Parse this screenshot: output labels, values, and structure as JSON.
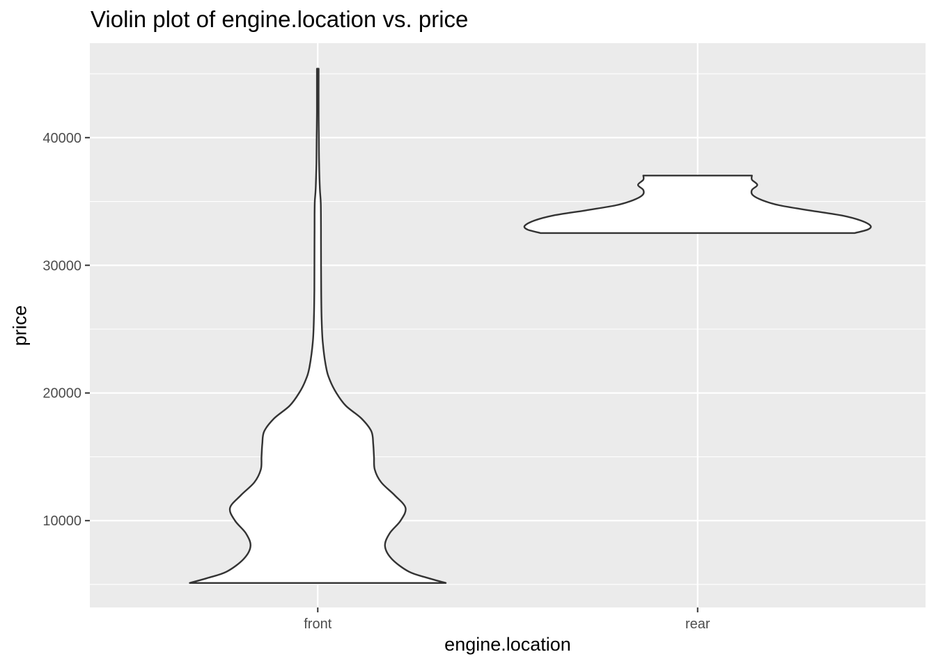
{
  "chart_data": {
    "type": "violin",
    "title": "Violin plot of engine.location vs. price",
    "xlabel": "engine.location",
    "ylabel": "price",
    "categories": [
      "front",
      "rear"
    ],
    "ylim": [
      3200,
      47400
    ],
    "yticks": [
      10000,
      20000,
      30000,
      40000
    ],
    "ytick_labels": [
      "10000",
      "20000",
      "30000",
      "40000"
    ],
    "grid": true,
    "background": "#ebebeb",
    "fill": "#ffffff",
    "outline": "#333333",
    "violins": [
      {
        "category": "front",
        "min": 5118,
        "max": 45400,
        "profile": [
          [
            5118,
            0.337
          ],
          [
            5500,
            0.291
          ],
          [
            6000,
            0.24
          ],
          [
            7000,
            0.195
          ],
          [
            8000,
            0.177
          ],
          [
            9000,
            0.189
          ],
          [
            10000,
            0.218
          ],
          [
            11000,
            0.231
          ],
          [
            12000,
            0.202
          ],
          [
            13000,
            0.167
          ],
          [
            14000,
            0.15
          ],
          [
            15000,
            0.148
          ],
          [
            16000,
            0.146
          ],
          [
            17000,
            0.141
          ],
          [
            18000,
            0.115
          ],
          [
            19000,
            0.074
          ],
          [
            20000,
            0.049
          ],
          [
            21000,
            0.032
          ],
          [
            22000,
            0.022
          ],
          [
            24000,
            0.013
          ],
          [
            26000,
            0.01
          ],
          [
            28000,
            0.009
          ],
          [
            30000,
            0.0087
          ],
          [
            32000,
            0.0085
          ],
          [
            34000,
            0.0083
          ],
          [
            35000,
            0.0078
          ],
          [
            36000,
            0.0055
          ],
          [
            38000,
            0.0035
          ],
          [
            40000,
            0.0028
          ],
          [
            42000,
            0.0022
          ],
          [
            45400,
            0.0022
          ]
        ]
      },
      {
        "category": "rear",
        "min": 32528,
        "max": 37028,
        "profile": [
          [
            32528,
            0.414
          ],
          [
            32800,
            0.448
          ],
          [
            33100,
            0.455
          ],
          [
            33500,
            0.43
          ],
          [
            33900,
            0.38
          ],
          [
            34300,
            0.295
          ],
          [
            34700,
            0.215
          ],
          [
            35100,
            0.17
          ],
          [
            35500,
            0.145
          ],
          [
            35900,
            0.143
          ],
          [
            36300,
            0.157
          ],
          [
            36700,
            0.143
          ],
          [
            37028,
            0.143
          ]
        ]
      }
    ]
  }
}
